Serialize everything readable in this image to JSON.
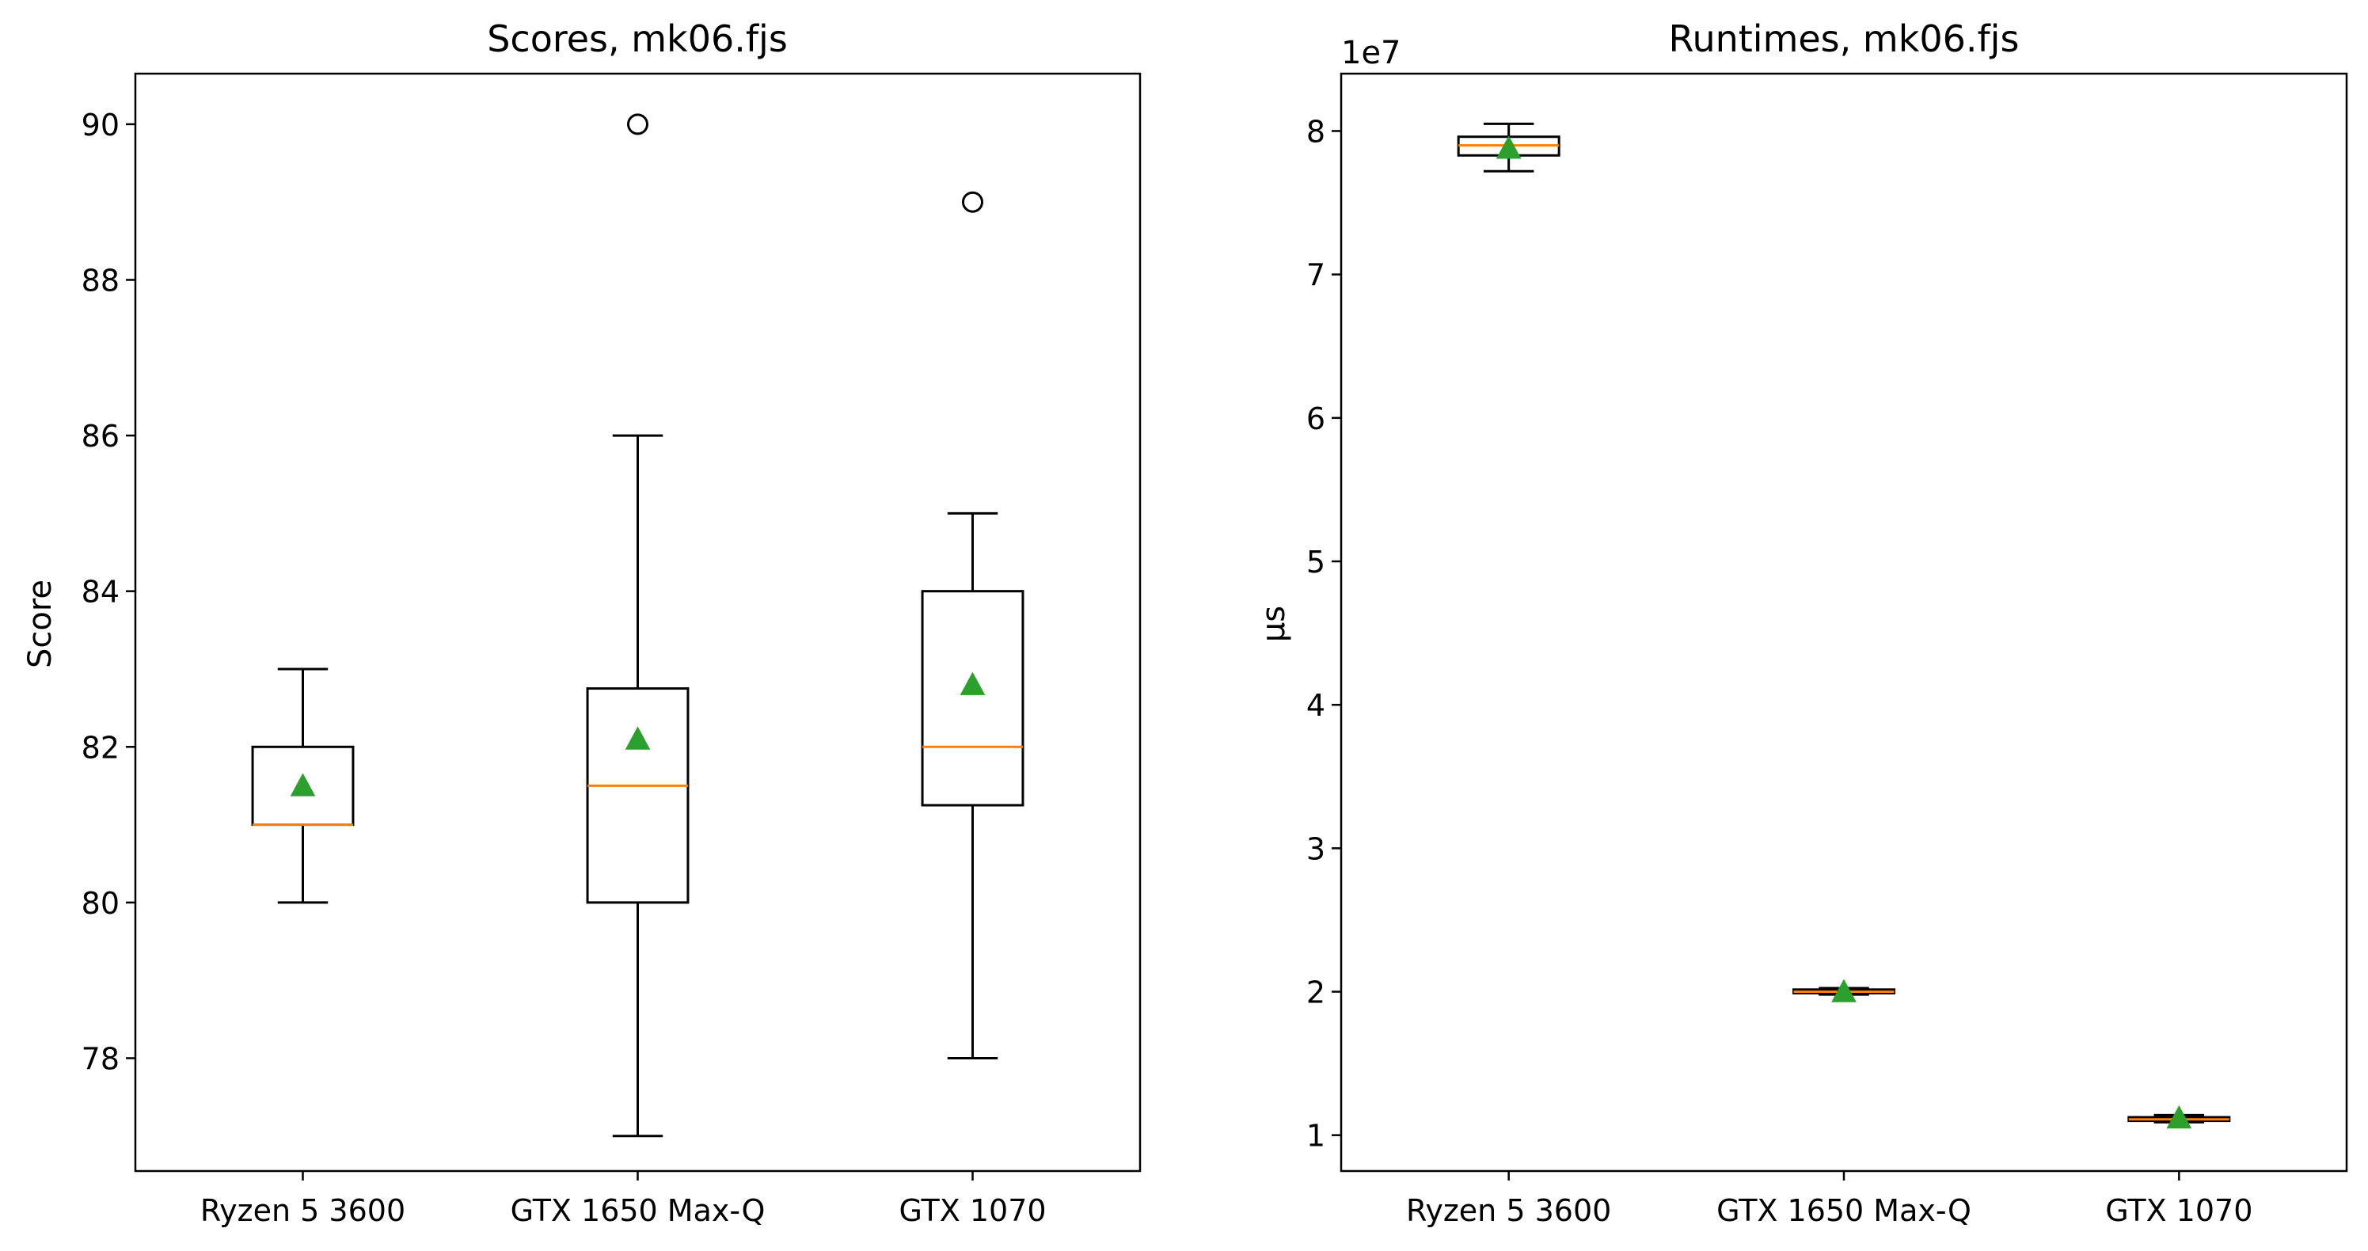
{
  "chart_data": [
    {
      "type": "box",
      "title": "Scores, mk06.fjs",
      "xlabel": "",
      "ylabel": "Score",
      "ylim": [
        76.55,
        90.65
      ],
      "yticks": [
        78,
        80,
        82,
        84,
        86,
        88,
        90
      ],
      "ytick_labels": [
        "78",
        "80",
        "82",
        "84",
        "86",
        "88",
        "90"
      ],
      "scale_label": "",
      "categories": [
        "Ryzen 5 3600",
        "GTX 1650 Max-Q",
        "GTX 1070"
      ],
      "boxes": [
        {
          "whisker_low": 80,
          "q1": 81,
          "median": 81,
          "q3": 82,
          "whisker_high": 83,
          "mean": 81.5,
          "outliers": []
        },
        {
          "whisker_low": 77,
          "q1": 80,
          "median": 81.5,
          "q3": 82.75,
          "whisker_high": 86,
          "mean": 82.1,
          "outliers": [
            90
          ]
        },
        {
          "whisker_low": 78,
          "q1": 81.25,
          "median": 82,
          "q3": 84,
          "whisker_high": 85,
          "mean": 82.8,
          "outliers": [
            89
          ]
        }
      ],
      "legend": "none",
      "grid": false
    },
    {
      "type": "box",
      "title": "Runtimes, mk06.fjs",
      "xlabel": "",
      "ylabel": "µs",
      "ylim": [
        0.75,
        8.4
      ],
      "yticks": [
        1,
        2,
        3,
        4,
        5,
        6,
        7,
        8
      ],
      "ytick_labels": [
        "1",
        "2",
        "3",
        "4",
        "5",
        "6",
        "7",
        "8"
      ],
      "scale_label": "1e7",
      "categories": [
        "Ryzen 5 3600",
        "GTX 1650 Max-Q",
        "GTX 1070"
      ],
      "boxes": [
        {
          "whisker_low": 7.72,
          "q1": 7.83,
          "median": 7.9,
          "q3": 7.96,
          "whisker_high": 8.05,
          "mean": 7.88,
          "outliers": []
        },
        {
          "whisker_low": 1.98,
          "q1": 1.99,
          "median": 2.0,
          "q3": 2.015,
          "whisker_high": 2.025,
          "mean": 2.0,
          "outliers": []
        },
        {
          "whisker_low": 1.09,
          "q1": 1.1,
          "median": 1.11,
          "q3": 1.125,
          "whisker_high": 1.14,
          "mean": 1.12,
          "outliers": []
        }
      ],
      "legend": "none",
      "grid": false
    }
  ],
  "colors": {
    "box": "#000000",
    "median": "#ff7f0e",
    "mean": "#2ca02c",
    "background": "#ffffff"
  }
}
